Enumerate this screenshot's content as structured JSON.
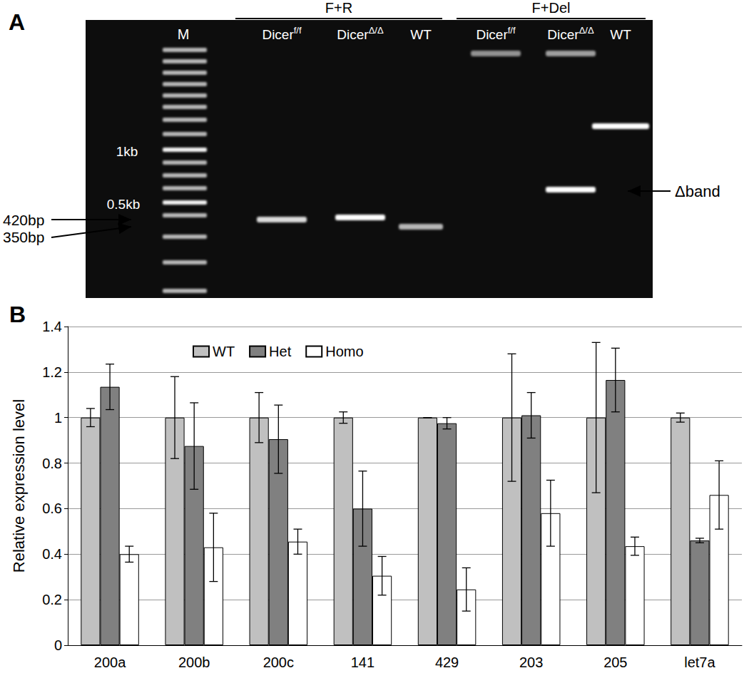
{
  "chart_data": {
    "type": "bar",
    "title": "B",
    "categories": [
      "200a",
      "200b",
      "200c",
      "141",
      "429",
      "203",
      "205",
      "let7a"
    ],
    "series": [
      {
        "name": "WT",
        "color": "#c0c0c0",
        "values": [
          1.0,
          1.0,
          1.0,
          1.0,
          1.0,
          1.0,
          1.0,
          1.0
        ],
        "errors": [
          0.04,
          0.18,
          0.11,
          0.025,
          0.0,
          0.28,
          0.33,
          0.02
        ]
      },
      {
        "name": "Het",
        "color": "#808080",
        "values": [
          1.135,
          0.875,
          0.905,
          0.6,
          0.975,
          1.01,
          1.165,
          0.46
        ],
        "errors": [
          0.1,
          0.19,
          0.15,
          0.165,
          0.025,
          0.1,
          0.14,
          0.01
        ]
      },
      {
        "name": "Homo",
        "color": "#ffffff",
        "values": [
          0.4,
          0.43,
          0.455,
          0.305,
          0.245,
          0.58,
          0.435,
          0.66
        ],
        "errors": [
          0.035,
          0.15,
          0.055,
          0.085,
          0.095,
          0.145,
          0.04,
          0.15
        ]
      }
    ],
    "ylabel": "Relative expression level",
    "ylim": [
      0,
      1.4
    ],
    "yticks": [
      0,
      0.2,
      0.4,
      0.6,
      0.8,
      1,
      1.2,
      1.4
    ],
    "grid": true,
    "legend": "top"
  },
  "gel": {
    "panel": "A",
    "marker": "M",
    "groups": [
      {
        "label": "F+R",
        "lanes": [
          {
            "base": "Dicer",
            "sup": "f/f"
          },
          {
            "base": "Dicer",
            "sup": "Δ/Δ"
          },
          {
            "base": "WT",
            "sup": null
          }
        ]
      },
      {
        "label": "F+Del",
        "lanes": [
          {
            "base": "Dicer",
            "sup": "f/f"
          },
          {
            "base": "Dicer",
            "sup": "Δ/Δ"
          },
          {
            "base": "WT",
            "sup": null
          }
        ]
      }
    ],
    "size_labels": [
      "1kb",
      "0.5kb"
    ],
    "arrow_labels": [
      "420bp",
      "350bp"
    ],
    "band_label": "Δband"
  }
}
